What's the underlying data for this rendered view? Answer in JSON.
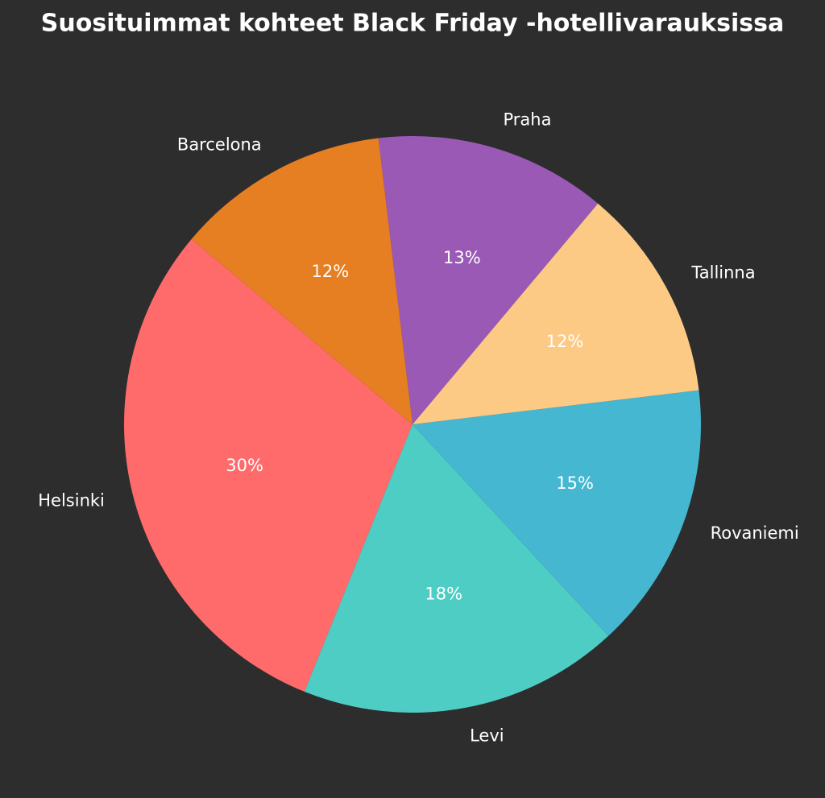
{
  "chart_data": {
    "type": "pie",
    "title": "Suosituimmat kohteet Black Friday -hotellivarauksissa",
    "categories": [
      "Helsinki",
      "Levi",
      "Rovaniemi",
      "Tallinna",
      "Praha",
      "Barcelona"
    ],
    "values": [
      30,
      18,
      15,
      12,
      13,
      12
    ],
    "value_labels": [
      "30%",
      "18%",
      "15%",
      "12%",
      "13%",
      "12%"
    ],
    "colors": [
      "#ff6b6b",
      "#4ecdc4",
      "#45b7d1",
      "#fdca85",
      "#9b59b6",
      "#e67e22"
    ]
  }
}
